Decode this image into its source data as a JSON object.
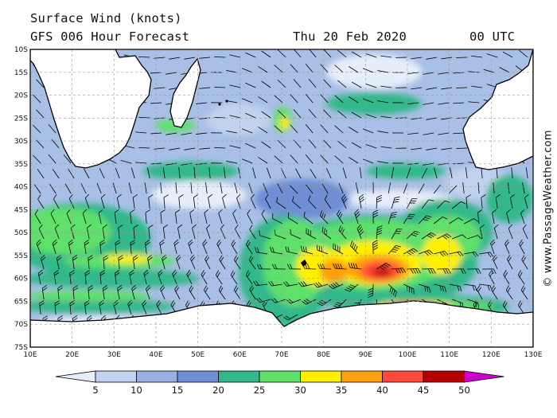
{
  "header": {
    "title": "Surface Wind (knots)",
    "model": "GFS 006 Hour Forecast",
    "date": "Thu 20 Feb 2020",
    "time": "00 UTC"
  },
  "credit": "© www.PassageWeather.com",
  "axes": {
    "lat_labels": [
      "10S",
      "15S",
      "20S",
      "25S",
      "30S",
      "35S",
      "40S",
      "45S",
      "50S",
      "55S",
      "60S",
      "65S",
      "70S",
      "75S"
    ],
    "lon_labels": [
      "10E",
      "20E",
      "30E",
      "40E",
      "50E",
      "60E",
      "70E",
      "80E",
      "90E",
      "100E",
      "110E",
      "120E",
      "130E"
    ]
  },
  "colorbar": {
    "values": [
      "5",
      "10",
      "15",
      "20",
      "25",
      "30",
      "35",
      "40",
      "45",
      "50"
    ],
    "colors": [
      "#e6eefa",
      "#c2d3ef",
      "#98b1e0",
      "#6e8fd4",
      "#32b88a",
      "#5ee06a",
      "#fff000",
      "#ffa010",
      "#ff4838",
      "#b80000",
      "#d000d0"
    ]
  },
  "map_colors": {
    "ocean_base": "#a8bfe6",
    "land": "#ffffff",
    "coast": "#000000",
    "grid": "#999999"
  }
}
